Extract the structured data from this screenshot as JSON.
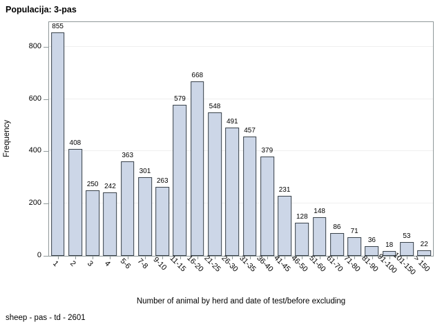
{
  "page": {
    "title": "Populacija: 3-pas",
    "footnote": "sheep - pas - td - 2601"
  },
  "chart_data": {
    "type": "bar",
    "title": "Populacija: 3-pas",
    "categories": [
      "1",
      "2",
      "3",
      "4",
      "5-6",
      "7-8",
      "9-10",
      "11-15",
      "16-20",
      "21-25",
      "26-30",
      "31-35",
      "36-40",
      "41-45",
      "46-50",
      "51-60",
      "61-70",
      "71-80",
      "81-90",
      "91-100",
      "101-150",
      "> 150"
    ],
    "values": [
      855,
      408,
      250,
      242,
      363,
      301,
      263,
      579,
      668,
      548,
      491,
      457,
      379,
      231,
      128,
      148,
      86,
      71,
      36,
      18,
      53,
      22
    ],
    "bar_value_labels": [
      "855",
      "408",
      "250",
      "242",
      "363",
      "301",
      "263",
      "579",
      "668",
      "548",
      "491",
      "457",
      "379",
      "231",
      "128",
      "148",
      "86",
      "71",
      "36",
      "18",
      "53",
      "22"
    ],
    "xlabel": "Number of animal by herd and date of test/before excluding",
    "ylabel": "Frequency",
    "yticks": [
      0,
      200,
      400,
      600,
      800
    ],
    "ytick_labels": [
      "0",
      "200",
      "400",
      "600",
      "800"
    ],
    "ylim": [
      0,
      895
    ],
    "grid": true,
    "legend_position": "none",
    "colors": {
      "bar_fill": "#ccd6e7",
      "bar_border": "#384149",
      "frame": "#8f9899",
      "gridline": "#efefef",
      "tick": "#8f9899",
      "text": "#000000",
      "background": "#ffffff"
    }
  }
}
